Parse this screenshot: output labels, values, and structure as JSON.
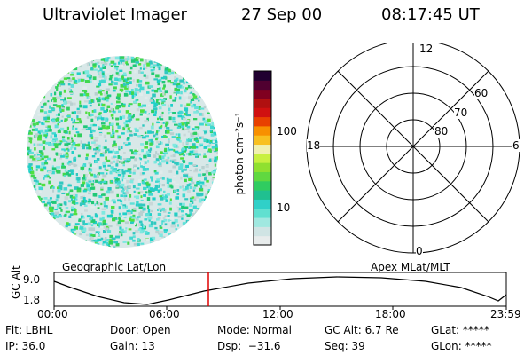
{
  "header": {
    "instrument": "Ultraviolet Imager",
    "date": "27 Sep 00",
    "time": "08:17:45 UT"
  },
  "colorbar": {
    "unit_label": "photon cm⁻²s⁻¹",
    "ticks": [
      "100",
      "10"
    ],
    "colors": [
      "#e8ecec",
      "#d0e4e4",
      "#a0e8e0",
      "#60e0d0",
      "#30d0c8",
      "#20c090",
      "#30cc60",
      "#60d840",
      "#90e030",
      "#c8f040",
      "#f0f0b0",
      "#f8c020",
      "#f89000",
      "#e84000",
      "#d01010",
      "#b01010",
      "#800020",
      "#500030",
      "#200030"
    ]
  },
  "polar": {
    "mlt_labels": {
      "top": "12",
      "bottom": "0",
      "left": "18",
      "right": "6"
    },
    "lat_labels": [
      "60",
      "70",
      "80"
    ]
  },
  "timeline": {
    "left_label": "Geographic Lat/Lon",
    "right_label": "Apex MLat/MLT",
    "axis_title": "GC Alt",
    "y_ticks": [
      "9.0",
      "1.8"
    ],
    "x_ticks": [
      "00:00",
      "06:00",
      "12:00",
      "18:00",
      "23:59"
    ]
  },
  "info": {
    "flt": "Flt: LBHL",
    "door": "Door: Open",
    "mode": "Mode: Normal",
    "gc_alt": "GC Alt: 6.7 Re",
    "glat": "GLat: *****",
    "ip": "IP: 36.0",
    "gain": "Gain: 13",
    "dsp": "Dsp:  −31.6",
    "seq": "Seq: 39",
    "glon": "GLon: *****"
  }
}
